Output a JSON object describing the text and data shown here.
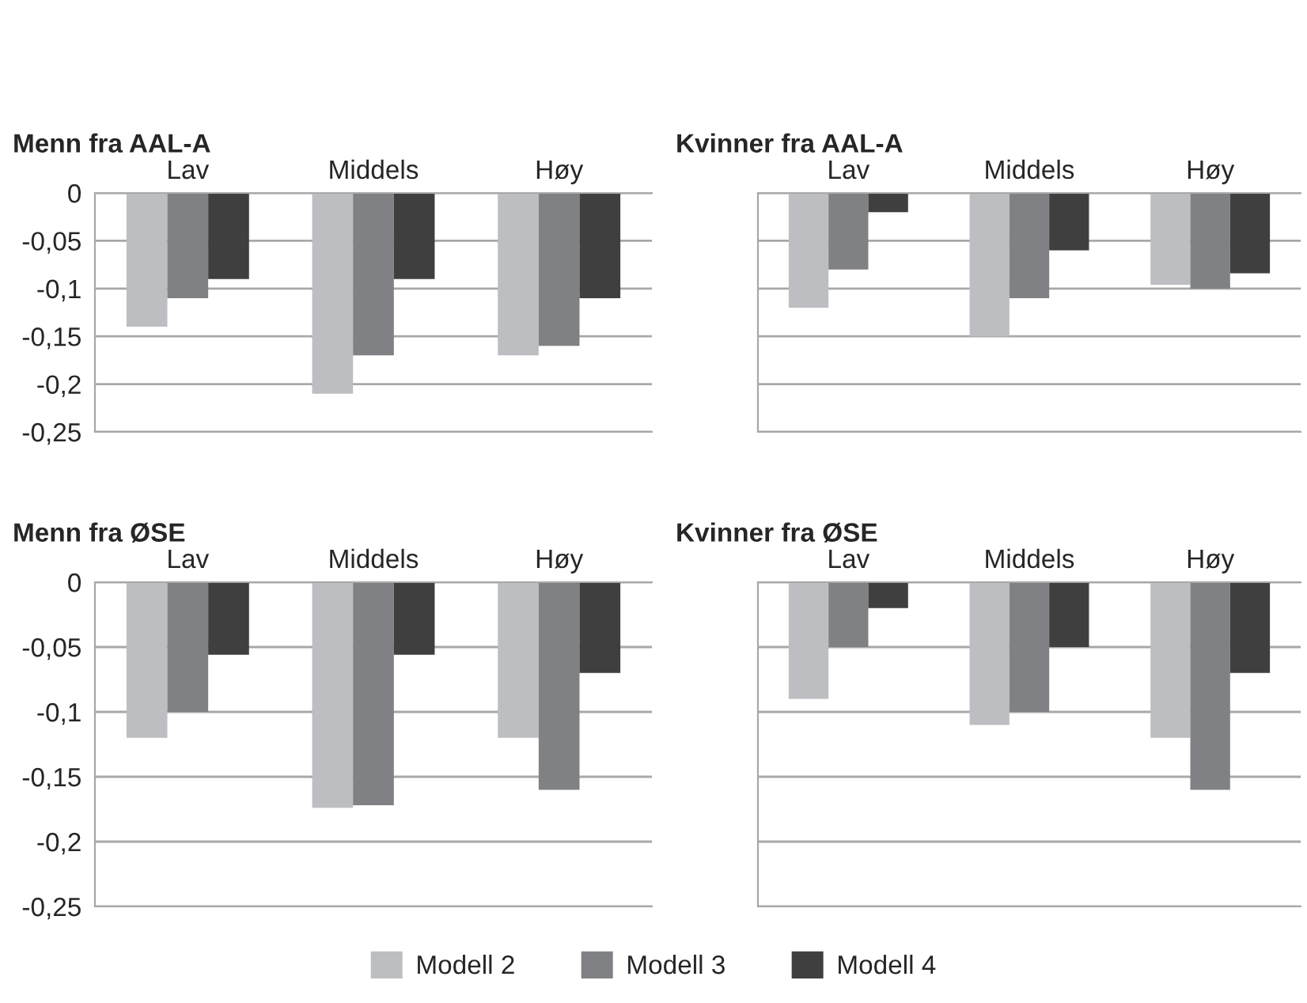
{
  "chart_data": [
    {
      "type": "bar",
      "title": "Menn fra AAL-A",
      "categories": [
        "Lav",
        "Middels",
        "Høy"
      ],
      "ylim": [
        -0.25,
        0
      ],
      "yticks": [
        {
          "value": 0,
          "label": "0"
        },
        {
          "value": -0.05,
          "label": "-0,05"
        },
        {
          "value": -0.1,
          "label": "-0,1"
        },
        {
          "value": -0.15,
          "label": "-0,15"
        },
        {
          "value": -0.2,
          "label": "-0,2"
        },
        {
          "value": -0.25,
          "label": "-0,25"
        }
      ],
      "grid": "y",
      "legend": "bottom",
      "series": [
        {
          "name": "Modell 2",
          "color": "#bdbec2",
          "values": [
            -0.14,
            -0.21,
            -0.17
          ]
        },
        {
          "name": "Modell 3",
          "color": "#808184",
          "values": [
            -0.11,
            -0.17,
            -0.16
          ]
        },
        {
          "name": "Modell 4",
          "color": "#3f3f3f",
          "values": [
            -0.09,
            -0.09,
            -0.11
          ]
        }
      ]
    },
    {
      "type": "bar",
      "title": "Kvinner fra AAL-A",
      "categories": [
        "Lav",
        "Middels",
        "Høy"
      ],
      "ylim": [
        -0.25,
        0
      ],
      "yticks": [
        0,
        -0.05,
        -0.1,
        -0.15,
        -0.2,
        -0.25
      ],
      "grid": "y",
      "tick_labels": "x",
      "series": [
        {
          "color": "#bdbec2",
          "values": [
            -0.12,
            -0.15,
            -0.096
          ]
        },
        {
          "color": "#808184",
          "values": [
            -0.08,
            -0.11,
            -0.1
          ]
        },
        {
          "color": "#3f3f3f",
          "values": [
            -0.02,
            -0.06,
            -0.084
          ]
        }
      ]
    },
    {
      "type": "bar",
      "title": "Menn fra ØSE",
      "categories": [
        "Lav",
        "Middels",
        "Høy"
      ],
      "ylim": [
        -0.25,
        0
      ],
      "yticks": [
        {
          "value": 0,
          "label": "0"
        },
        {
          "value": -0.05,
          "label": "-0,05"
        },
        {
          "value": -0.1,
          "label": "-0,1"
        },
        {
          "value": -0.15,
          "label": "-0,15"
        },
        {
          "value": -0.2,
          "label": "-0,2"
        },
        {
          "value": -0.25,
          "label": "-0,25"
        }
      ],
      "grid": "y",
      "series": [
        {
          "color": "#bdbec2",
          "values": [
            -0.12,
            -0.174,
            -0.12
          ]
        },
        {
          "color": "#808184",
          "values": [
            -0.1,
            -0.172,
            -0.16
          ]
        },
        {
          "color": "#3f3f3f",
          "values": [
            -0.056,
            -0.056,
            -0.07
          ]
        }
      ]
    },
    {
      "type": "bar",
      "title": "Kvinner fra ØSE",
      "categories": [
        "Lav",
        "Middels",
        "Høy"
      ],
      "ylim": [
        -0.25,
        0
      ],
      "yticks": [
        0,
        -0.05,
        -0.1,
        -0.15,
        -0.2,
        -0.25
      ],
      "grid": "y",
      "tick_labels": "x",
      "series": [
        {
          "color": "#bdbec2",
          "values": [
            -0.09,
            -0.11,
            -0.12
          ]
        },
        {
          "color": "#808184",
          "values": [
            -0.05,
            -0.1,
            -0.16
          ]
        },
        {
          "color": "#3f3f3f",
          "values": [
            -0.02,
            -0.05,
            -0.07
          ]
        }
      ]
    }
  ]
}
